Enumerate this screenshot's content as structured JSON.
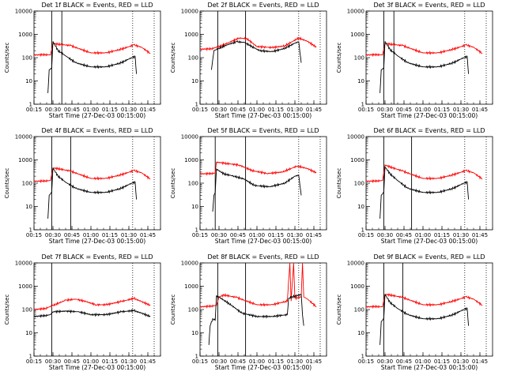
{
  "chart_data": {
    "type": "line",
    "y_scale": "log",
    "ylim": [
      1,
      10000
    ],
    "yticks": [
      1,
      10,
      100,
      1000,
      10000
    ],
    "ytick_labels": [
      "1",
      "10",
      "100",
      "1000",
      "10000"
    ],
    "xlim_minutes": [
      15,
      115
    ],
    "xticks_minutes": [
      15,
      30,
      45,
      60,
      75,
      90,
      105
    ],
    "xtick_labels": [
      "00:15",
      "00:30",
      "00:45",
      "01:00",
      "01:15",
      "01:30",
      "01:45"
    ],
    "ylabel": "Counts/sec",
    "xlabel": "Start Time (27-Dec-03 00:15:00)",
    "legend_series": [
      {
        "name": "Events",
        "color": "#000000"
      },
      {
        "name": "LLD",
        "color": "#ff0000"
      }
    ],
    "panels": [
      {
        "title": "Det 1f BLACK = Events, RED = LLD",
        "solid_lines": [
          29,
          37
        ],
        "dotted_lines": [
          93,
          110
        ],
        "events": [
          [
            26,
            3
          ],
          [
            27,
            30
          ],
          [
            29,
            35
          ],
          [
            30,
            500
          ],
          [
            34,
            200
          ],
          [
            40,
            120
          ],
          [
            48,
            60
          ],
          [
            60,
            40
          ],
          [
            72,
            40
          ],
          [
            84,
            60
          ],
          [
            92,
            100
          ],
          [
            95,
            110
          ],
          [
            96,
            20
          ]
        ],
        "lld": [
          [
            15,
            130
          ],
          [
            24,
            135
          ],
          [
            28,
            130
          ],
          [
            30,
            400
          ],
          [
            34,
            380
          ],
          [
            44,
            330
          ],
          [
            50,
            250
          ],
          [
            60,
            160
          ],
          [
            72,
            160
          ],
          [
            84,
            230
          ],
          [
            94,
            350
          ],
          [
            100,
            280
          ],
          [
            107,
            150
          ]
        ]
      },
      {
        "title": "Det 2f BLACK = Events, RED = LLD",
        "solid_lines": [
          29,
          51
        ],
        "dotted_lines": [
          93,
          110
        ],
        "events": [
          [
            24,
            30
          ],
          [
            26,
            200
          ],
          [
            30,
            250
          ],
          [
            36,
            350
          ],
          [
            44,
            480
          ],
          [
            50,
            450
          ],
          [
            56,
            300
          ],
          [
            62,
            200
          ],
          [
            72,
            180
          ],
          [
            82,
            250
          ],
          [
            90,
            420
          ],
          [
            93,
            480
          ],
          [
            95,
            60
          ]
        ],
        "lld": [
          [
            15,
            230
          ],
          [
            24,
            240
          ],
          [
            30,
            300
          ],
          [
            38,
            450
          ],
          [
            46,
            700
          ],
          [
            52,
            650
          ],
          [
            60,
            300
          ],
          [
            72,
            270
          ],
          [
            82,
            320
          ],
          [
            93,
            700
          ],
          [
            100,
            500
          ],
          [
            107,
            280
          ]
        ]
      },
      {
        "title": "Det 3f BLACK = Events, RED = LLD",
        "solid_lines": [
          29,
          37
        ],
        "dotted_lines": [
          93,
          110
        ],
        "events": [
          [
            26,
            3
          ],
          [
            27,
            30
          ],
          [
            29,
            35
          ],
          [
            30,
            500
          ],
          [
            34,
            220
          ],
          [
            40,
            120
          ],
          [
            48,
            60
          ],
          [
            60,
            40
          ],
          [
            72,
            40
          ],
          [
            84,
            60
          ],
          [
            92,
            100
          ],
          [
            95,
            110
          ],
          [
            96,
            20
          ]
        ],
        "lld": [
          [
            15,
            130
          ],
          [
            24,
            135
          ],
          [
            28,
            130
          ],
          [
            30,
            400
          ],
          [
            34,
            380
          ],
          [
            44,
            330
          ],
          [
            50,
            250
          ],
          [
            60,
            160
          ],
          [
            72,
            160
          ],
          [
            84,
            230
          ],
          [
            94,
            350
          ],
          [
            100,
            280
          ],
          [
            107,
            150
          ]
        ]
      },
      {
        "title": "Det 4f BLACK = Events, RED = LLD",
        "solid_lines": [
          29,
          44
        ],
        "dotted_lines": [
          93,
          110
        ],
        "events": [
          [
            26,
            3
          ],
          [
            27,
            30
          ],
          [
            29,
            40
          ],
          [
            30,
            450
          ],
          [
            34,
            200
          ],
          [
            40,
            110
          ],
          [
            48,
            60
          ],
          [
            60,
            40
          ],
          [
            72,
            40
          ],
          [
            84,
            60
          ],
          [
            92,
            100
          ],
          [
            95,
            110
          ],
          [
            96,
            20
          ]
        ],
        "lld": [
          [
            15,
            120
          ],
          [
            24,
            125
          ],
          [
            28,
            130
          ],
          [
            30,
            450
          ],
          [
            34,
            420
          ],
          [
            44,
            330
          ],
          [
            50,
            250
          ],
          [
            60,
            160
          ],
          [
            72,
            160
          ],
          [
            84,
            230
          ],
          [
            94,
            350
          ],
          [
            100,
            280
          ],
          [
            107,
            150
          ]
        ]
      },
      {
        "title": "Det 5f BLACK = Events, RED = LLD",
        "solid_lines": [
          27,
          51
        ],
        "dotted_lines": [
          93,
          110
        ],
        "events": [
          [
            25,
            6
          ],
          [
            26,
            30
          ],
          [
            27,
            40
          ],
          [
            28,
            400
          ],
          [
            34,
            250
          ],
          [
            42,
            200
          ],
          [
            50,
            150
          ],
          [
            58,
            80
          ],
          [
            70,
            70
          ],
          [
            82,
            100
          ],
          [
            90,
            200
          ],
          [
            93,
            220
          ],
          [
            95,
            30
          ]
        ],
        "lld": [
          [
            15,
            250
          ],
          [
            24,
            260
          ],
          [
            27,
            270
          ],
          [
            28,
            800
          ],
          [
            36,
            700
          ],
          [
            46,
            600
          ],
          [
            56,
            350
          ],
          [
            68,
            260
          ],
          [
            80,
            300
          ],
          [
            92,
            550
          ],
          [
            100,
            420
          ],
          [
            107,
            280
          ]
        ]
      },
      {
        "title": "Det 6f BLACK = Events, RED = LLD",
        "solid_lines": [
          29,
          51
        ],
        "dotted_lines": [
          93,
          110
        ],
        "events": [
          [
            26,
            3
          ],
          [
            27,
            30
          ],
          [
            29,
            40
          ],
          [
            30,
            500
          ],
          [
            34,
            250
          ],
          [
            40,
            130
          ],
          [
            48,
            60
          ],
          [
            60,
            40
          ],
          [
            72,
            40
          ],
          [
            84,
            60
          ],
          [
            92,
            100
          ],
          [
            95,
            110
          ],
          [
            96,
            20
          ]
        ],
        "lld": [
          [
            15,
            120
          ],
          [
            24,
            125
          ],
          [
            28,
            130
          ],
          [
            30,
            600
          ],
          [
            34,
            500
          ],
          [
            44,
            330
          ],
          [
            50,
            250
          ],
          [
            60,
            160
          ],
          [
            72,
            160
          ],
          [
            84,
            230
          ],
          [
            94,
            350
          ],
          [
            100,
            280
          ],
          [
            107,
            150
          ]
        ]
      },
      {
        "title": "Det 7f BLACK = Events, RED = LLD",
        "solid_lines": [
          29
        ],
        "dotted_lines": [
          93,
          110
        ],
        "events": [
          [
            15,
            50
          ],
          [
            24,
            55
          ],
          [
            28,
            60
          ],
          [
            30,
            80
          ],
          [
            40,
            85
          ],
          [
            50,
            80
          ],
          [
            60,
            60
          ],
          [
            72,
            60
          ],
          [
            84,
            80
          ],
          [
            94,
            90
          ],
          [
            100,
            70
          ],
          [
            107,
            50
          ]
        ],
        "lld": [
          [
            15,
            100
          ],
          [
            24,
            110
          ],
          [
            30,
            150
          ],
          [
            40,
            250
          ],
          [
            48,
            280
          ],
          [
            56,
            220
          ],
          [
            64,
            160
          ],
          [
            72,
            160
          ],
          [
            84,
            220
          ],
          [
            94,
            300
          ],
          [
            100,
            220
          ],
          [
            107,
            150
          ]
        ]
      },
      {
        "title": "Det 8f BLACK = Events, RED = LLD",
        "solid_lines": [
          29,
          51
        ],
        "dotted_lines": [
          93,
          110
        ],
        "events": [
          [
            22,
            3
          ],
          [
            23,
            20
          ],
          [
            25,
            40
          ],
          [
            27,
            35
          ],
          [
            28,
            400
          ],
          [
            34,
            250
          ],
          [
            40,
            150
          ],
          [
            48,
            70
          ],
          [
            60,
            50
          ],
          [
            72,
            50
          ],
          [
            84,
            60
          ],
          [
            85,
            300
          ],
          [
            88,
            350
          ],
          [
            92,
            400
          ],
          [
            95,
            450
          ],
          [
            96,
            60
          ],
          [
            97,
            20
          ]
        ],
        "lld": [
          [
            15,
            130
          ],
          [
            24,
            140
          ],
          [
            28,
            150
          ],
          [
            30,
            350
          ],
          [
            34,
            420
          ],
          [
            44,
            330
          ],
          [
            50,
            250
          ],
          [
            60,
            160
          ],
          [
            72,
            160
          ],
          [
            84,
            230
          ],
          [
            86,
            10000
          ],
          [
            87,
            230
          ],
          [
            89,
            10000
          ],
          [
            90,
            300
          ],
          [
            95,
            350
          ],
          [
            96,
            10000
          ],
          [
            97,
            350
          ],
          [
            100,
            280
          ],
          [
            107,
            130
          ]
        ]
      },
      {
        "title": "Det 9f BLACK = Events, RED = LLD",
        "solid_lines": [
          29,
          44
        ],
        "dotted_lines": [
          93,
          110
        ],
        "events": [
          [
            26,
            3
          ],
          [
            27,
            30
          ],
          [
            29,
            40
          ],
          [
            30,
            450
          ],
          [
            34,
            200
          ],
          [
            40,
            110
          ],
          [
            48,
            60
          ],
          [
            60,
            40
          ],
          [
            72,
            40
          ],
          [
            84,
            60
          ],
          [
            92,
            100
          ],
          [
            95,
            110
          ],
          [
            96,
            20
          ]
        ],
        "lld": [
          [
            15,
            130
          ],
          [
            24,
            135
          ],
          [
            28,
            130
          ],
          [
            30,
            450
          ],
          [
            34,
            420
          ],
          [
            44,
            330
          ],
          [
            50,
            250
          ],
          [
            60,
            160
          ],
          [
            72,
            160
          ],
          [
            84,
            230
          ],
          [
            94,
            350
          ],
          [
            100,
            280
          ],
          [
            107,
            150
          ]
        ]
      }
    ]
  }
}
